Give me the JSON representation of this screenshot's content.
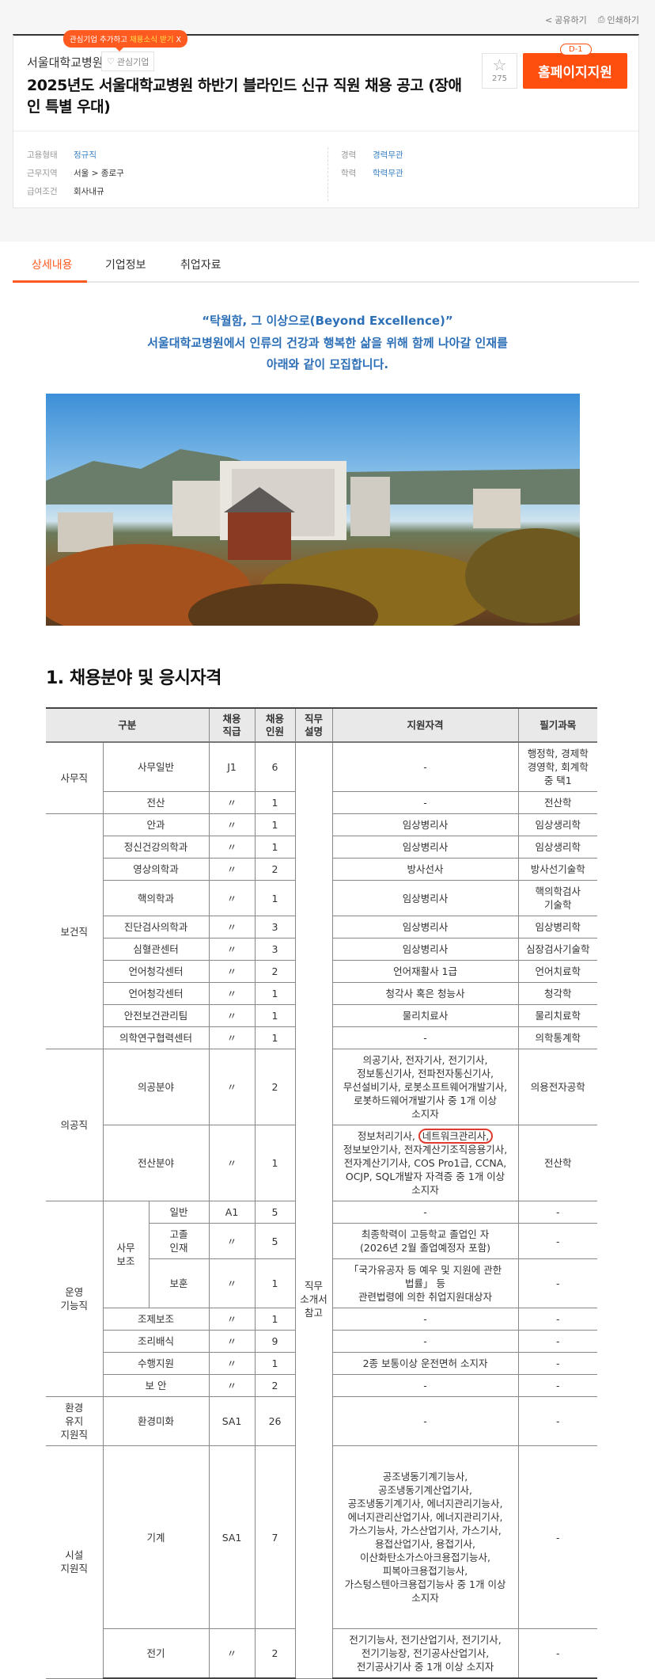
{
  "toolbar": {
    "share": "공유하기",
    "print": "인쇄하기",
    "share_icon": "share-icon",
    "print_icon": "printer-icon"
  },
  "header": {
    "tooltip_prefix": "관심기업 추가하고 ",
    "tooltip_highlight": "채용소식 받기",
    "tooltip_close": "X",
    "company": "서울대학교병원",
    "favorite_label": "관심기업",
    "title": "2025년도 서울대학교병원 하반기 블라인드 신규 직원 채용 공고 (장애인 특별 우대)",
    "star_count": "275",
    "dday": "D-1",
    "apply_label": "홈페이지지원",
    "accent": "#ff4f0e"
  },
  "info": {
    "employment_label": "고용형태",
    "employment": "정규직",
    "location_label": "근무지역",
    "location": "서울 > 종로구",
    "salary_label": "급여조건",
    "salary": "회사내규",
    "career_label": "경력",
    "career": "경력무관",
    "education_label": "학력",
    "education": "학력무관"
  },
  "tabs": [
    {
      "label": "상세내용",
      "active": true
    },
    {
      "label": "기업정보"
    },
    {
      "label": "취업자료"
    }
  ],
  "intro": {
    "line1": "“탁월함, 그 이상으로(Beyond Excellence)”",
    "line2": "서울대학교병원에서 인류의 건강과 행복한 삶을 위해 함께 나아갈 인재를",
    "line3": "아래와 같이 모집합니다."
  },
  "section_title": "1. 채용분야 및 응시자격",
  "table": {
    "headers": {
      "division": "구분",
      "grade": "채용\n직급",
      "count": "채용\n인원",
      "duty": "직무\n설명",
      "qualification": "지원자격",
      "exam": "필기과목"
    },
    "duty_note": "직무\n소개서\n참고",
    "circled": "네트워크관리사,",
    "groups": [
      {
        "name": "사무직",
        "rows": [
          {
            "division": "사무일반",
            "grade": "J1",
            "count": "6",
            "qualification": "-",
            "exam": "행정학, 경제학\n경영학, 회계학\n중 택1"
          },
          {
            "division": "전산",
            "grade": "〃",
            "count": "1",
            "qualification": "-",
            "exam": "전산학"
          }
        ]
      },
      {
        "name": "보건직",
        "rows": [
          {
            "division": "안과",
            "grade": "〃",
            "count": "1",
            "qualification": "임상병리사",
            "exam": "임상생리학"
          },
          {
            "division": "정신건강의학과",
            "grade": "〃",
            "count": "1",
            "qualification": "임상병리사",
            "exam": "임상생리학"
          },
          {
            "division": "영상의학과",
            "grade": "〃",
            "count": "2",
            "qualification": "방사선사",
            "exam": "방사선기술학"
          },
          {
            "division": "핵의학과",
            "grade": "〃",
            "count": "1",
            "qualification": "임상병리사",
            "exam": "핵의학검사\n기술학"
          },
          {
            "division": "진단검사의학과",
            "grade": "〃",
            "count": "3",
            "qualification": "임상병리사",
            "exam": "임상병리학"
          },
          {
            "division": "심혈관센터",
            "grade": "〃",
            "count": "3",
            "qualification": "임상병리사",
            "exam": "심장검사기술학"
          },
          {
            "division": "언어청각센터",
            "grade": "〃",
            "count": "2",
            "qualification": "언어재활사 1급",
            "exam": "언어치료학"
          },
          {
            "division": "언어청각센터",
            "grade": "〃",
            "count": "1",
            "qualification": "청각사 혹은 청능사",
            "exam": "청각학"
          },
          {
            "division": "안전보건관리팀",
            "grade": "〃",
            "count": "1",
            "qualification": "물리치료사",
            "exam": "물리치료학"
          },
          {
            "division": "의학연구협력센터",
            "grade": "〃",
            "count": "1",
            "qualification": "-",
            "exam": "의학통계학"
          }
        ]
      },
      {
        "name": "의공직",
        "rows": [
          {
            "division": "의공분야",
            "grade": "〃",
            "count": "2",
            "qualification": "의공기사, 전자기사, 전기기사,\n정보통신기사, 전파전자통신기사,\n무선설비기사, 로봇소프트웨어개발기사,\n로봇하드웨어개발기사 중 1개 이상\n소지자",
            "exam": "의용전자공학"
          },
          {
            "division": "전산분야",
            "grade": "〃",
            "count": "1",
            "qualification_pre": "정보처리기사, ",
            "qualification": "\n정보보안기사, 전자계산기조직응용기사,\n전자계산기기사, COS Pro1급, CCNA,\nOCJP, SQL개발자 자격증 중 1개 이상\n소지자",
            "exam": "전산학",
            "circled": true
          }
        ]
      },
      {
        "name": "운영\n기능직",
        "rows": [
          {
            "sub": "사무\n보조",
            "division": "일반",
            "grade": "A1",
            "count": "5",
            "qualification": "-",
            "exam": "-"
          },
          {
            "sub": "사무\n보조",
            "division": "고졸\n인재",
            "grade": "〃",
            "count": "5",
            "qualification": "최종학력이 고등학교 졸업인 자\n(2026년 2월 졸업예정자 포함)",
            "exam": "-"
          },
          {
            "sub": "사무\n보조",
            "division": "보훈",
            "grade": "〃",
            "count": "1",
            "qualification": "「국가유공자 등 예우 및 지원에 관한\n법률」 등\n관련법령에 의한 취업지원대상자",
            "exam": "-"
          },
          {
            "division": "조제보조",
            "grade": "〃",
            "count": "1",
            "qualification": "-",
            "exam": "-"
          },
          {
            "division": "조리배식",
            "grade": "〃",
            "count": "9",
            "qualification": "-",
            "exam": "-"
          },
          {
            "division": "수행지원",
            "grade": "〃",
            "count": "1",
            "qualification": "2종 보통이상 운전면허 소지자",
            "exam": "-"
          },
          {
            "division": "보 안",
            "grade": "〃",
            "count": "2",
            "qualification": "-",
            "exam": "-"
          }
        ]
      },
      {
        "name": "환경\n유지\n지원직",
        "rows": [
          {
            "division": "환경미화",
            "grade": "SA1",
            "count": "26",
            "qualification": "-",
            "exam": "-",
            "tall": true
          }
        ]
      },
      {
        "name": "시설\n지원직",
        "rows": [
          {
            "division": "기계",
            "grade": "SA1",
            "count": "7",
            "qualification": "공조냉동기계기능사,\n공조냉동기계산업기사,\n공조냉동기계기사, 에너지관리기능사,\n에너지관리산업기사, 에너지관리기사,\n가스기능사, 가스산업기사, 가스기사,\n용접산업기사, 용접기사,\n이산화탄소가스아크용접기능사,\n피복아크용접기능사,\n가스텅스텐아크용접기능사 중 1개 이상\n소지자",
            "exam": "-",
            "pad": true
          },
          {
            "division": "전기",
            "grade": "〃",
            "count": "2",
            "qualification": "전기기능사, 전기산업기사, 전기기사,\n전기기능장, 전기공사산업기사,\n전기공사기사 중 1개 이상 소지자",
            "exam": "-"
          }
        ]
      }
    ]
  }
}
